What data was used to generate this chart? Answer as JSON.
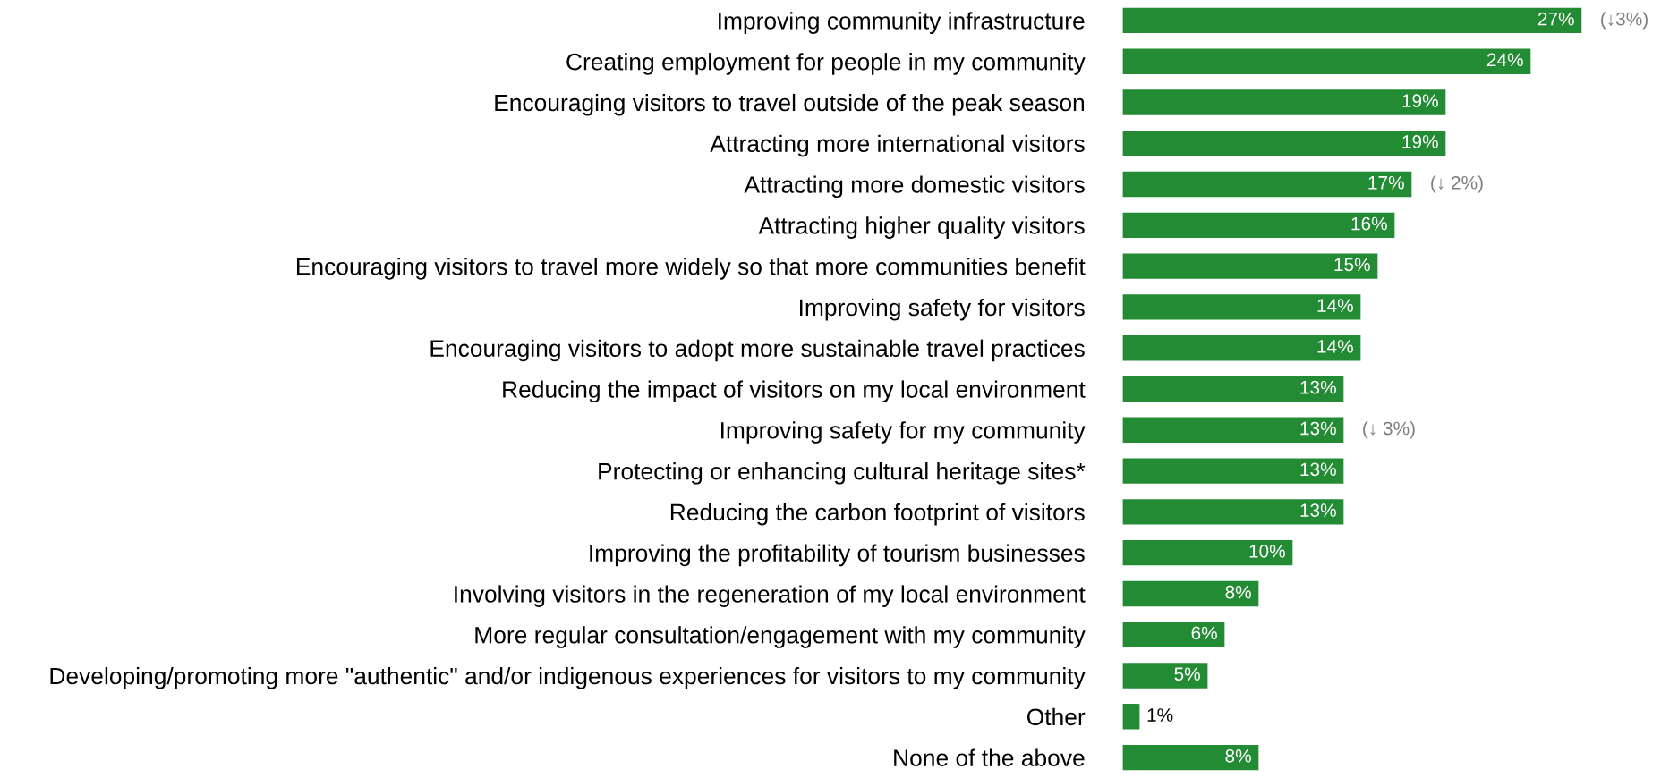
{
  "chart_data": {
    "type": "bar",
    "orientation": "horizontal",
    "color": "#228b34",
    "grid": false,
    "value_labels": [
      "27%",
      "24%",
      "19%",
      "19%",
      "17%",
      "16%",
      "15%",
      "14%",
      "14%",
      "13%",
      "13%",
      "13%",
      "13%",
      "10%",
      "8%",
      "6%",
      "5%",
      "1%",
      "8%"
    ],
    "categories": [
      "Improving community infrastructure",
      "Creating employment for people in my community",
      "Encouraging visitors to travel outside of the peak season",
      "Attracting more international visitors",
      "Attracting more domestic visitors",
      "Attracting higher quality visitors",
      "Encouraging visitors to travel more widely so that more communities benefit",
      "Improving safety for visitors",
      "Encouraging visitors to adopt more sustainable travel practices",
      "Reducing the impact of visitors on my local environment",
      "Improving safety for my community",
      "Protecting or enhancing cultural heritage sites*",
      "Reducing the carbon footprint of visitors",
      "Improving the profitability of tourism businesses",
      "Involving visitors in the regeneration of my local environment",
      "More regular consultation/engagement with my community",
      "Developing/promoting more \"authentic\" and/or indigenous experiences for visitors to my community",
      "Other",
      "None of the above"
    ],
    "values": [
      27,
      24,
      19,
      19,
      17,
      16,
      15,
      14,
      14,
      13,
      13,
      13,
      13,
      10,
      8,
      6,
      5,
      1,
      8
    ],
    "annotations": [
      {
        "text": "(↓3%)",
        "x": 27,
        "y": "Improving community infrastructure"
      },
      {
        "text": "(↓ 2%)",
        "x": 17,
        "y": "Attracting more domestic visitors"
      },
      {
        "text": "(↓ 3%)",
        "x": 13,
        "y": "Improving safety for my community"
      }
    ]
  }
}
